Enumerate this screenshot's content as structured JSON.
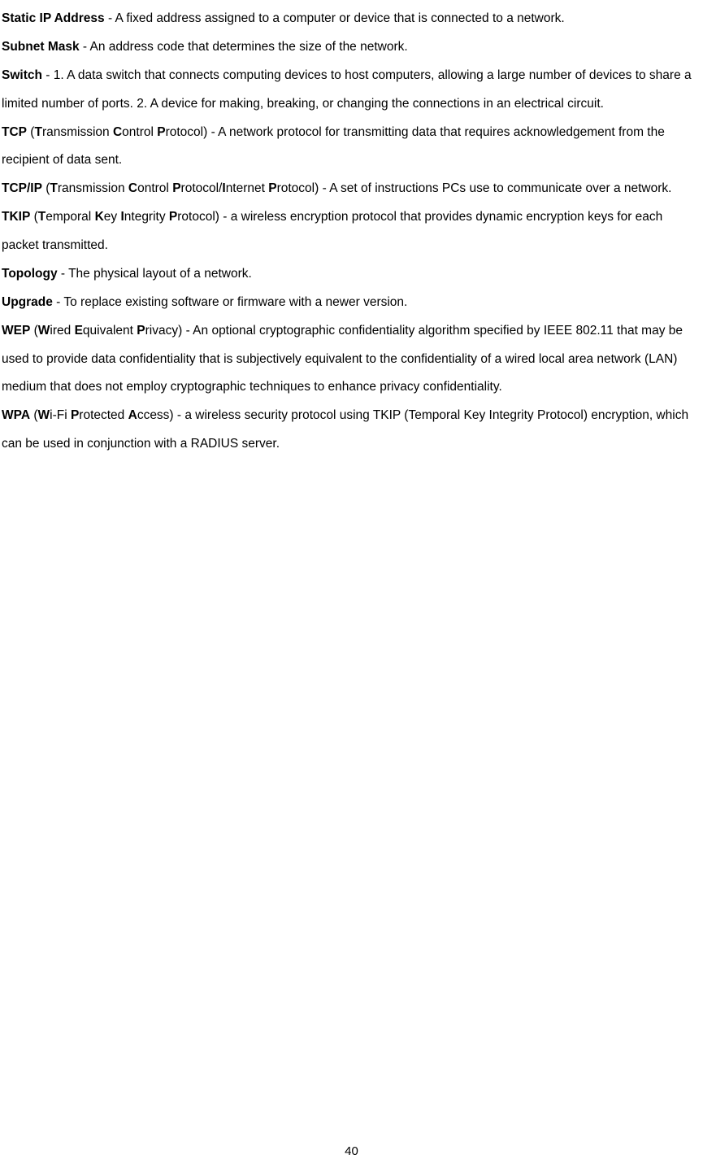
{
  "page_number": "40",
  "entries": [
    {
      "segments": [
        {
          "text": "Static IP Address",
          "bold": true
        },
        {
          "text": " - A fixed address assigned to a computer or device that is connected to a network."
        }
      ]
    },
    {
      "segments": [
        {
          "text": "Subnet Mask",
          "bold": true
        },
        {
          "text": " - An address code that determines the size of the network."
        }
      ]
    },
    {
      "segments": [
        {
          "text": "Switch",
          "bold": true
        },
        {
          "text": " - 1. A data switch that connects computing devices to host computers, allowing a large number of devices to share a limited number of ports. 2. A device for making, breaking, or changing the connections in an electrical circuit."
        }
      ]
    },
    {
      "segments": [
        {
          "text": "TCP",
          "bold": true
        },
        {
          "text": " ("
        },
        {
          "text": "T",
          "bold": true
        },
        {
          "text": "ransmission "
        },
        {
          "text": "C",
          "bold": true
        },
        {
          "text": "ontrol "
        },
        {
          "text": "P",
          "bold": true
        },
        {
          "text": "rotocol) - A network protocol for transmitting data that requires acknowledgement from the recipient of data sent."
        }
      ]
    },
    {
      "segments": [
        {
          "text": "TCP/IP",
          "bold": true
        },
        {
          "text": " ("
        },
        {
          "text": "T",
          "bold": true
        },
        {
          "text": "ransmission "
        },
        {
          "text": "C",
          "bold": true
        },
        {
          "text": "ontrol "
        },
        {
          "text": "P",
          "bold": true
        },
        {
          "text": "rotocol/"
        },
        {
          "text": "I",
          "bold": true
        },
        {
          "text": "nternet "
        },
        {
          "text": "P",
          "bold": true
        },
        {
          "text": "rotocol) - A set of instructions PCs use to communicate over a network."
        }
      ]
    },
    {
      "segments": [
        {
          "text": "TKIP",
          "bold": true
        },
        {
          "text": " ("
        },
        {
          "text": "T",
          "bold": true
        },
        {
          "text": "emporal "
        },
        {
          "text": "K",
          "bold": true
        },
        {
          "text": "ey "
        },
        {
          "text": "I",
          "bold": true
        },
        {
          "text": "ntegrity "
        },
        {
          "text": "P",
          "bold": true
        },
        {
          "text": "rotocol) - a wireless encryption protocol that provides dynamic encryption keys for each packet transmitted."
        }
      ]
    },
    {
      "segments": [
        {
          "text": "Topology",
          "bold": true
        },
        {
          "text": " - The physical layout of a network."
        }
      ]
    },
    {
      "segments": [
        {
          "text": "Upgrade",
          "bold": true
        },
        {
          "text": " - To replace existing software or firmware with a newer version."
        }
      ]
    },
    {
      "segments": [
        {
          "text": "WEP",
          "bold": true
        },
        {
          "text": " ("
        },
        {
          "text": "W",
          "bold": true
        },
        {
          "text": "ired "
        },
        {
          "text": "E",
          "bold": true
        },
        {
          "text": "quivalent "
        },
        {
          "text": "P",
          "bold": true
        },
        {
          "text": "rivacy) - An optional cryptographic confidentiality algorithm specified by IEEE 802.11 that may be used to provide data confidentiality that is subjectively equivalent to the confidentiality of a wired local area network (LAN) medium that does not employ cryptographic techniques to enhance privacy confidentiality."
        }
      ]
    },
    {
      "segments": [
        {
          "text": "WPA",
          "bold": true
        },
        {
          "text": " ("
        },
        {
          "text": "W",
          "bold": true
        },
        {
          "text": "i-Fi "
        },
        {
          "text": "P",
          "bold": true
        },
        {
          "text": "rotected "
        },
        {
          "text": "A",
          "bold": true
        },
        {
          "text": "ccess) - a wireless security protocol using TKIP (Temporal Key Integrity Protocol) encryption, which can be used in conjunction with a RADIUS server."
        }
      ]
    }
  ]
}
